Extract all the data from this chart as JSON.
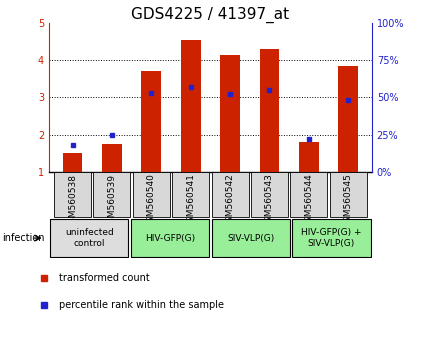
{
  "title": "GDS4225 / 41397_at",
  "samples": [
    "GSM560538",
    "GSM560539",
    "GSM560540",
    "GSM560541",
    "GSM560542",
    "GSM560543",
    "GSM560544",
    "GSM560545"
  ],
  "transformed_counts": [
    1.5,
    1.75,
    3.7,
    4.55,
    4.15,
    4.3,
    1.8,
    3.85
  ],
  "percentile_ranks": [
    18,
    25,
    53,
    57,
    52,
    55,
    22,
    48
  ],
  "ylim": [
    1,
    5
  ],
  "y2lim": [
    0,
    100
  ],
  "yticks": [
    1,
    2,
    3,
    4,
    5
  ],
  "y2ticks": [
    0,
    25,
    50,
    75,
    100
  ],
  "bar_color": "#cc2200",
  "dot_color": "#2222cc",
  "groups": [
    {
      "label": "uninfected\ncontrol",
      "start": 0,
      "end": 2,
      "color": "#dddddd"
    },
    {
      "label": "HIV-GFP(G)",
      "start": 2,
      "end": 4,
      "color": "#99ee99"
    },
    {
      "label": "SIV-VLP(G)",
      "start": 4,
      "end": 6,
      "color": "#99ee99"
    },
    {
      "label": "HIV-GFP(G) +\nSIV-VLP(G)",
      "start": 6,
      "end": 8,
      "color": "#99ee99"
    }
  ],
  "infection_label": "infection",
  "legend_items": [
    {
      "label": "transformed count",
      "color": "#cc2200"
    },
    {
      "label": "percentile rank within the sample",
      "color": "#2222cc"
    }
  ],
  "bar_width": 0.5,
  "title_fontsize": 11,
  "tick_fontsize": 7,
  "sample_fontsize": 6.5
}
